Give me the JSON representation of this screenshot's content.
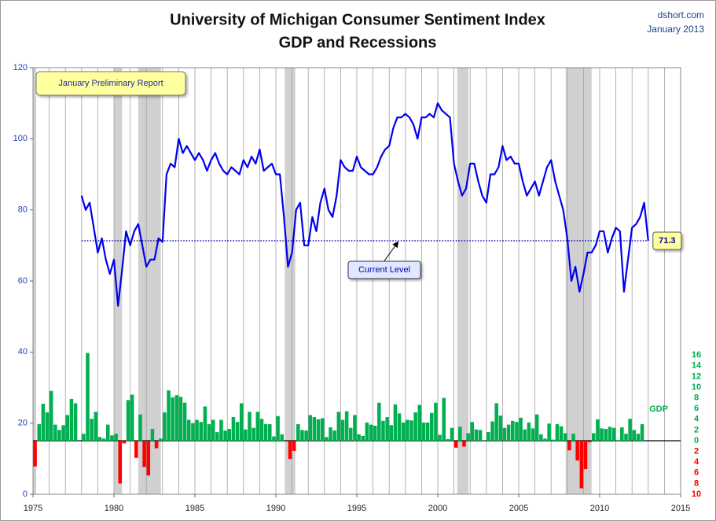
{
  "chart_data": [
    {
      "type": "line",
      "title": "University of Michigan Consumer Sentiment Index",
      "subtitle": "GDP and Recessions",
      "source": "dshort.com",
      "date": "January 2013",
      "report_note": "January Preliminary Report",
      "current_label": "Current Level",
      "current_value": 71.3,
      "xlim": [
        1975,
        2015
      ],
      "xticks": [
        1975,
        1980,
        1985,
        1990,
        1995,
        2000,
        2005,
        2010,
        2015
      ],
      "ylim": [
        0,
        120
      ],
      "yticks": [
        0,
        20,
        40,
        60,
        80,
        100,
        120
      ],
      "grid": true,
      "recession_color": "#d0d0d0",
      "recessions": [
        [
          1975,
          1975.2
        ],
        [
          1980,
          1980.5
        ],
        [
          1981.5,
          1982.9
        ],
        [
          1990.55,
          1991.2
        ],
        [
          2001.2,
          2001.9
        ],
        [
          2007.9,
          2009.5
        ]
      ],
      "x": [
        1978,
        1978.25,
        1978.5,
        1978.75,
        1979,
        1979.25,
        1979.5,
        1979.75,
        1980,
        1980.25,
        1980.5,
        1980.75,
        1981,
        1981.25,
        1981.5,
        1981.75,
        1982,
        1982.25,
        1982.5,
        1982.75,
        1983,
        1983.25,
        1983.5,
        1983.75,
        1984,
        1984.25,
        1984.5,
        1984.75,
        1985,
        1985.25,
        1985.5,
        1985.75,
        1986,
        1986.25,
        1986.5,
        1986.75,
        1987,
        1987.25,
        1987.5,
        1987.75,
        1988,
        1988.25,
        1988.5,
        1988.75,
        1989,
        1989.25,
        1989.5,
        1989.75,
        1990,
        1990.25,
        1990.5,
        1990.75,
        1991,
        1991.25,
        1991.5,
        1991.75,
        1992,
        1992.25,
        1992.5,
        1992.75,
        1993,
        1993.25,
        1993.5,
        1993.75,
        1994,
        1994.25,
        1994.5,
        1994.75,
        1995,
        1995.25,
        1995.5,
        1995.75,
        1996,
        1996.25,
        1996.5,
        1996.75,
        1997,
        1997.25,
        1997.5,
        1997.75,
        1998,
        1998.25,
        1998.5,
        1998.75,
        1999,
        1999.25,
        1999.5,
        1999.75,
        2000,
        2000.25,
        2000.5,
        2000.75,
        2001,
        2001.25,
        2001.5,
        2001.75,
        2002,
        2002.25,
        2002.5,
        2002.75,
        2003,
        2003.25,
        2003.5,
        2003.75,
        2004,
        2004.25,
        2004.5,
        2004.75,
        2005,
        2005.25,
        2005.5,
        2005.75,
        2006,
        2006.25,
        2006.5,
        2006.75,
        2007,
        2007.25,
        2007.5,
        2007.75,
        2008,
        2008.25,
        2008.5,
        2008.75,
        2009,
        2009.25,
        2009.5,
        2009.75,
        2010,
        2010.25,
        2010.5,
        2010.75,
        2011,
        2011.25,
        2011.5,
        2011.75,
        2012,
        2012.25,
        2012.5,
        2012.75,
        2013
      ],
      "series": [
        {
          "name": "Consumer Sentiment",
          "color": "#0000ee",
          "values": [
            84,
            80,
            82,
            75,
            68,
            72,
            66,
            62,
            66,
            53,
            63,
            74,
            70,
            74,
            76,
            70,
            64,
            66,
            66,
            72,
            71,
            90,
            93,
            92,
            100,
            96,
            98,
            96,
            94,
            96,
            94,
            91,
            94,
            96,
            93,
            91,
            90,
            92,
            91,
            90,
            94,
            92,
            95,
            93,
            97,
            91,
            92,
            93,
            90,
            90,
            78,
            64,
            68,
            80,
            82,
            70,
            70,
            78,
            74,
            82,
            86,
            80,
            78,
            84,
            94,
            92,
            91,
            91,
            95,
            92,
            91,
            90,
            90,
            92,
            95,
            97,
            98,
            103,
            106,
            106,
            107,
            106,
            104,
            100,
            106,
            106,
            107,
            106,
            110,
            108,
            107,
            106,
            93,
            88,
            84,
            86,
            93,
            93,
            88,
            84,
            82,
            90,
            90,
            92,
            98,
            94,
            95,
            93,
            93,
            88,
            84,
            86,
            88,
            84,
            88,
            92,
            94,
            88,
            84,
            80,
            72,
            60,
            64,
            57,
            62,
            68,
            68,
            70,
            74,
            74,
            68,
            72,
            75,
            74,
            57,
            66,
            75,
            76,
            78,
            82,
            71.3
          ]
        }
      ]
    },
    {
      "type": "bar",
      "label": "GDP",
      "y2lim": [
        -10,
        69.7
      ],
      "y2ticks": [
        16,
        14,
        12,
        10,
        8,
        6,
        4,
        2,
        0,
        {
          "value": -2,
          "label": "2"
        },
        {
          "value": -4,
          "label": "4"
        },
        {
          "value": -6,
          "label": "6"
        },
        {
          "value": -8,
          "label": "8"
        },
        {
          "value": -10,
          "label": "10"
        }
      ],
      "color": "#00b050",
      "negative_color": "#ff0000",
      "x": [
        1975,
        1975.25,
        1975.5,
        1975.75,
        1976,
        1976.25,
        1976.5,
        1976.75,
        1977,
        1977.25,
        1977.5,
        1977.75,
        1978,
        1978.25,
        1978.5,
        1978.75,
        1979,
        1979.25,
        1979.5,
        1979.75,
        1980,
        1980.25,
        1980.5,
        1980.75,
        1981,
        1981.25,
        1981.5,
        1981.75,
        1982,
        1982.25,
        1982.5,
        1982.75,
        1983,
        1983.25,
        1983.5,
        1983.75,
        1984,
        1984.25,
        1984.5,
        1984.75,
        1985,
        1985.25,
        1985.5,
        1985.75,
        1986,
        1986.25,
        1986.5,
        1986.75,
        1987,
        1987.25,
        1987.5,
        1987.75,
        1988,
        1988.25,
        1988.5,
        1988.75,
        1989,
        1989.25,
        1989.5,
        1989.75,
        1990,
        1990.25,
        1990.5,
        1990.75,
        1991,
        1991.25,
        1991.5,
        1991.75,
        1992,
        1992.25,
        1992.5,
        1992.75,
        1993,
        1993.25,
        1993.5,
        1993.75,
        1994,
        1994.25,
        1994.5,
        1994.75,
        1995,
        1995.25,
        1995.5,
        1995.75,
        1996,
        1996.25,
        1996.5,
        1996.75,
        1997,
        1997.25,
        1997.5,
        1997.75,
        1998,
        1998.25,
        1998.5,
        1998.75,
        1999,
        1999.25,
        1999.5,
        1999.75,
        2000,
        2000.25,
        2000.5,
        2000.75,
        2001,
        2001.25,
        2001.5,
        2001.75,
        2002,
        2002.25,
        2002.5,
        2002.75,
        2003,
        2003.25,
        2003.5,
        2003.75,
        2004,
        2004.25,
        2004.5,
        2004.75,
        2005,
        2005.25,
        2005.5,
        2005.75,
        2006,
        2006.25,
        2006.5,
        2006.75,
        2007,
        2007.25,
        2007.5,
        2007.75,
        2008,
        2008.25,
        2008.5,
        2008.75,
        2009,
        2009.25,
        2009.5,
        2009.75,
        2010,
        2010.25,
        2010.5,
        2010.75,
        2011,
        2011.25,
        2011.5,
        2011.75,
        2012,
        2012.25,
        2012.5
      ],
      "series": [
        {
          "name": "GDP",
          "axis": "y2",
          "values": [
            -4.8,
            3.1,
            6.9,
            5.3,
            9.3,
            3.0,
            2.0,
            2.9,
            4.8,
            7.8,
            7.0,
            0.0,
            1.3,
            16.4,
            4.1,
            5.4,
            0.7,
            0.4,
            3.0,
            1.0,
            1.3,
            -8.0,
            -0.5,
            7.6,
            8.6,
            -3.2,
            4.9,
            -4.9,
            -6.5,
            2.2,
            -1.4,
            0.4,
            5.3,
            9.4,
            8.1,
            8.5,
            8.2,
            7.1,
            3.9,
            3.3,
            3.9,
            3.5,
            6.4,
            3.1,
            3.9,
            1.6,
            3.9,
            1.9,
            2.2,
            4.4,
            3.5,
            7.0,
            2.1,
            5.4,
            2.4,
            5.4,
            4.1,
            3.1,
            3.1,
            0.8,
            4.6,
            1.2,
            0.0,
            -3.4,
            -1.9,
            3.1,
            2.0,
            1.9,
            4.8,
            4.4,
            4.0,
            4.2,
            0.7,
            2.5,
            1.9,
            5.4,
            3.9,
            5.5,
            2.4,
            4.8,
            1.2,
            0.9,
            3.4,
            3.0,
            2.8,
            7.1,
            3.7,
            4.4,
            2.9,
            6.8,
            5.1,
            3.4,
            3.9,
            3.8,
            5.3,
            6.7,
            3.4,
            3.4,
            5.2,
            7.1,
            1.1,
            8.0,
            0.3,
            2.4,
            -1.3,
            2.6,
            -1.1,
            1.4,
            3.5,
            2.1,
            2.0,
            0.1,
            1.6,
            3.6,
            7.0,
            4.7,
            2.4,
            3.0,
            3.7,
            3.5,
            4.3,
            2.1,
            3.4,
            2.3,
            4.9,
            1.2,
            0.4,
            3.2,
            0.2,
            3.1,
            2.7,
            1.4,
            -1.8,
            1.3,
            -3.7,
            -8.9,
            -5.3,
            -0.3,
            1.4,
            4.0,
            2.3,
            2.2,
            2.6,
            2.4,
            0.1,
            2.5,
            1.3,
            4.1,
            2.0,
            1.3,
            3.1
          ]
        }
      ]
    }
  ]
}
